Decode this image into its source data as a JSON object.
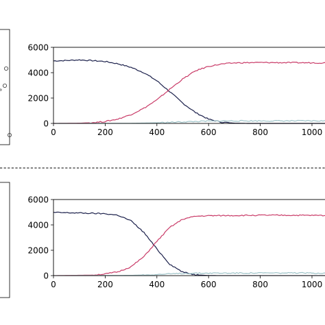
{
  "chart_data": [
    {
      "type": "line",
      "title": "",
      "xlabel": "",
      "ylabel": "",
      "xlim": [
        0,
        1060
      ],
      "ylim": [
        0,
        6000
      ],
      "x_ticks": [
        "0",
        "200",
        "400",
        "600",
        "800",
        "1000"
      ],
      "y_ticks": [
        "0",
        "2000",
        "4000",
        "6000"
      ],
      "grid": false,
      "legend": "none",
      "series": [
        {
          "color": "#1a1f4a",
          "points": [
            [
              0,
              4930
            ],
            [
              50,
              4960
            ],
            [
              100,
              5010
            ],
            [
              150,
              4950
            ],
            [
              200,
              4880
            ],
            [
              250,
              4700
            ],
            [
              300,
              4420
            ],
            [
              350,
              4000
            ],
            [
              400,
              3360
            ],
            [
              450,
              2500
            ],
            [
              500,
              1600
            ],
            [
              550,
              850
            ],
            [
              600,
              330
            ],
            [
              650,
              100
            ],
            [
              700,
              20
            ],
            [
              750,
              0
            ],
            [
              1060,
              0
            ]
          ]
        },
        {
          "color": "#c93a67",
          "points": [
            [
              0,
              0
            ],
            [
              100,
              20
            ],
            [
              150,
              60
            ],
            [
              200,
              150
            ],
            [
              250,
              350
            ],
            [
              300,
              700
            ],
            [
              350,
              1200
            ],
            [
              400,
              1850
            ],
            [
              450,
              2700
            ],
            [
              500,
              3500
            ],
            [
              550,
              4150
            ],
            [
              600,
              4500
            ],
            [
              650,
              4680
            ],
            [
              700,
              4770
            ],
            [
              750,
              4790
            ],
            [
              800,
              4800
            ],
            [
              900,
              4790
            ],
            [
              1000,
              4780
            ],
            [
              1060,
              4770
            ]
          ]
        },
        {
          "color": "#9dc3c8",
          "points": [
            [
              0,
              0
            ],
            [
              300,
              10
            ],
            [
              400,
              50
            ],
            [
              500,
              120
            ],
            [
              600,
              180
            ],
            [
              700,
              200
            ],
            [
              800,
              200
            ],
            [
              1060,
              200
            ]
          ]
        }
      ]
    },
    {
      "type": "line",
      "title": "",
      "xlabel": "",
      "ylabel": "",
      "xlim": [
        0,
        1060
      ],
      "ylim": [
        0,
        6000
      ],
      "x_ticks": [
        "0",
        "200",
        "400",
        "600",
        "800",
        "1000"
      ],
      "y_ticks": [
        "0",
        "2000",
        "4000",
        "6000"
      ],
      "grid": false,
      "legend": "none",
      "series": [
        {
          "color": "#1a1f4a",
          "points": [
            [
              0,
              4980
            ],
            [
              100,
              4940
            ],
            [
              200,
              4880
            ],
            [
              250,
              4760
            ],
            [
              300,
              4320
            ],
            [
              350,
              3400
            ],
            [
              400,
              2100
            ],
            [
              450,
              900
            ],
            [
              500,
              280
            ],
            [
              550,
              60
            ],
            [
              600,
              10
            ],
            [
              650,
              0
            ],
            [
              1060,
              0
            ]
          ]
        },
        {
          "color": "#c93a67",
          "points": [
            [
              0,
              0
            ],
            [
              150,
              40
            ],
            [
              200,
              130
            ],
            [
              250,
              300
            ],
            [
              300,
              700
            ],
            [
              350,
              1500
            ],
            [
              400,
              2700
            ],
            [
              450,
              3800
            ],
            [
              500,
              4450
            ],
            [
              550,
              4680
            ],
            [
              600,
              4720
            ],
            [
              700,
              4740
            ],
            [
              800,
              4760
            ],
            [
              900,
              4760
            ],
            [
              1000,
              4750
            ],
            [
              1060,
              4740
            ]
          ]
        },
        {
          "color": "#9dc3c8",
          "points": [
            [
              0,
              0
            ],
            [
              300,
              20
            ],
            [
              400,
              90
            ],
            [
              500,
              180
            ],
            [
              600,
              200
            ],
            [
              800,
              210
            ],
            [
              1060,
              200
            ]
          ]
        }
      ]
    }
  ]
}
